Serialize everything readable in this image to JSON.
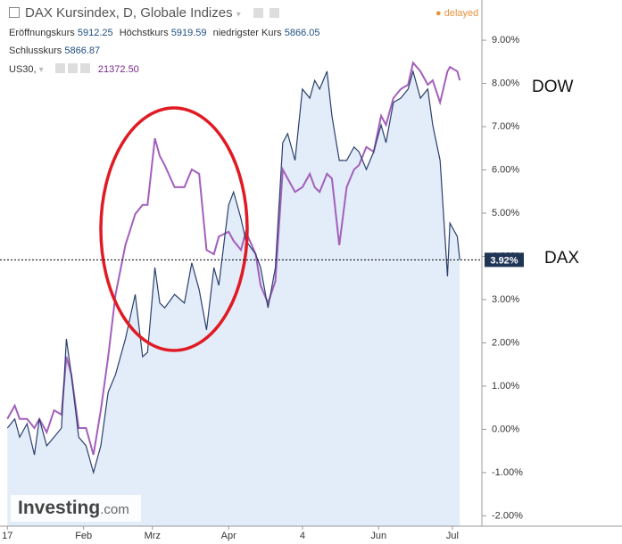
{
  "chart_data": {
    "type": "line",
    "title": "DAX Kursindex, D, Globale Indizes",
    "status": "delayed",
    "ohlc": [
      {
        "label": "Eröffnungskurs",
        "value": "5912.25"
      },
      {
        "label": "Höchstkurs",
        "value": "5919.59"
      },
      {
        "label": "niedrigster Kurs",
        "value": "5866.05"
      },
      {
        "label": "Schlusskurs",
        "value": "5866.87"
      }
    ],
    "compare": {
      "label": "US30,",
      "value": "21372.50"
    },
    "logo": {
      "name": "Investing",
      "suffix": ".com"
    },
    "annotations": [
      "DOW",
      "DAX"
    ],
    "x": [
      0,
      3,
      5,
      8,
      11,
      13,
      16,
      19,
      22,
      24,
      26,
      29,
      32,
      35,
      38,
      41,
      44,
      48,
      52,
      55,
      57,
      60,
      62,
      64,
      68,
      72,
      75,
      78,
      81,
      84,
      86,
      90,
      92,
      95,
      97,
      101,
      103,
      106,
      109,
      112,
      114,
      117,
      120,
      123,
      125,
      127,
      130,
      132,
      135,
      138,
      141,
      143,
      146,
      149,
      152,
      154,
      157,
      160,
      163,
      165,
      168,
      171,
      173,
      176,
      179,
      180,
      183,
      184
    ],
    "series": [
      {
        "name": "DAX",
        "color": "#2b3f6c",
        "fill": "#e2edf9",
        "last_label": "3.92%",
        "values": [
          0.03,
          0.24,
          -0.18,
          0.13,
          -0.59,
          0.24,
          -0.38,
          -0.18,
          0.03,
          2.09,
          1.27,
          -0.18,
          -0.38,
          -1.0,
          -0.38,
          0.86,
          1.27,
          2.09,
          3.12,
          1.68,
          1.78,
          3.74,
          2.92,
          2.81,
          3.12,
          2.92,
          3.85,
          3.23,
          2.3,
          3.74,
          3.33,
          5.19,
          5.49,
          4.88,
          4.36,
          4.05,
          3.74,
          2.81,
          3.74,
          6.63,
          6.84,
          6.22,
          7.87,
          7.66,
          8.07,
          7.87,
          8.28,
          7.25,
          6.22,
          6.22,
          6.53,
          6.42,
          6.01,
          6.42,
          7.04,
          6.63,
          7.56,
          7.66,
          7.87,
          8.28,
          7.66,
          7.87,
          7.04,
          6.22,
          3.54,
          4.77,
          4.46,
          3.92
        ]
      },
      {
        "name": "US30",
        "color": "#a35fbb",
        "values": [
          0.24,
          0.55,
          0.24,
          0.24,
          0.03,
          0.24,
          -0.07,
          0.44,
          0.34,
          1.68,
          1.27,
          0.03,
          0.03,
          -0.59,
          0.44,
          1.68,
          3.12,
          4.26,
          4.98,
          5.19,
          5.19,
          6.73,
          6.32,
          6.11,
          5.6,
          5.6,
          6.01,
          5.91,
          4.15,
          4.05,
          4.46,
          4.57,
          4.36,
          4.15,
          4.57,
          4.05,
          3.33,
          2.92,
          3.43,
          6.01,
          5.8,
          5.49,
          5.6,
          5.91,
          5.6,
          5.49,
          5.91,
          5.8,
          4.26,
          5.6,
          6.01,
          6.11,
          6.53,
          6.42,
          7.25,
          7.04,
          7.66,
          7.87,
          7.97,
          8.48,
          8.28,
          7.97,
          8.07,
          7.56,
          8.28,
          8.38,
          8.28,
          8.07
        ]
      }
    ],
    "xlim": [
      -3,
      193
    ],
    "xticks": [
      {
        "value": 0,
        "label": "17"
      },
      {
        "value": 31,
        "label": "Feb"
      },
      {
        "value": 59,
        "label": "Mrz"
      },
      {
        "value": 90,
        "label": "Apr"
      },
      {
        "value": 120,
        "label": "4"
      },
      {
        "value": 151,
        "label": "Jun"
      },
      {
        "value": 181,
        "label": "Jul"
      }
    ],
    "ylim": [
      -2.24,
      9.93
    ],
    "yticks": [
      {
        "value": -2,
        "label": "-2.00%"
      },
      {
        "value": -1,
        "label": "-1.00%"
      },
      {
        "value": 0,
        "label": "0.00%"
      },
      {
        "value": 1,
        "label": "1.00%"
      },
      {
        "value": 2,
        "label": "2.00%"
      },
      {
        "value": 3,
        "label": "3.00%"
      },
      {
        "value": 4,
        "label": "4.00%"
      },
      {
        "value": 5,
        "label": "5.00%"
      },
      {
        "value": 6,
        "label": "6.00%"
      },
      {
        "value": 7,
        "label": "7.00%"
      },
      {
        "value": 8,
        "label": "8.00%"
      },
      {
        "value": 9,
        "label": "9.00%"
      }
    ]
  }
}
